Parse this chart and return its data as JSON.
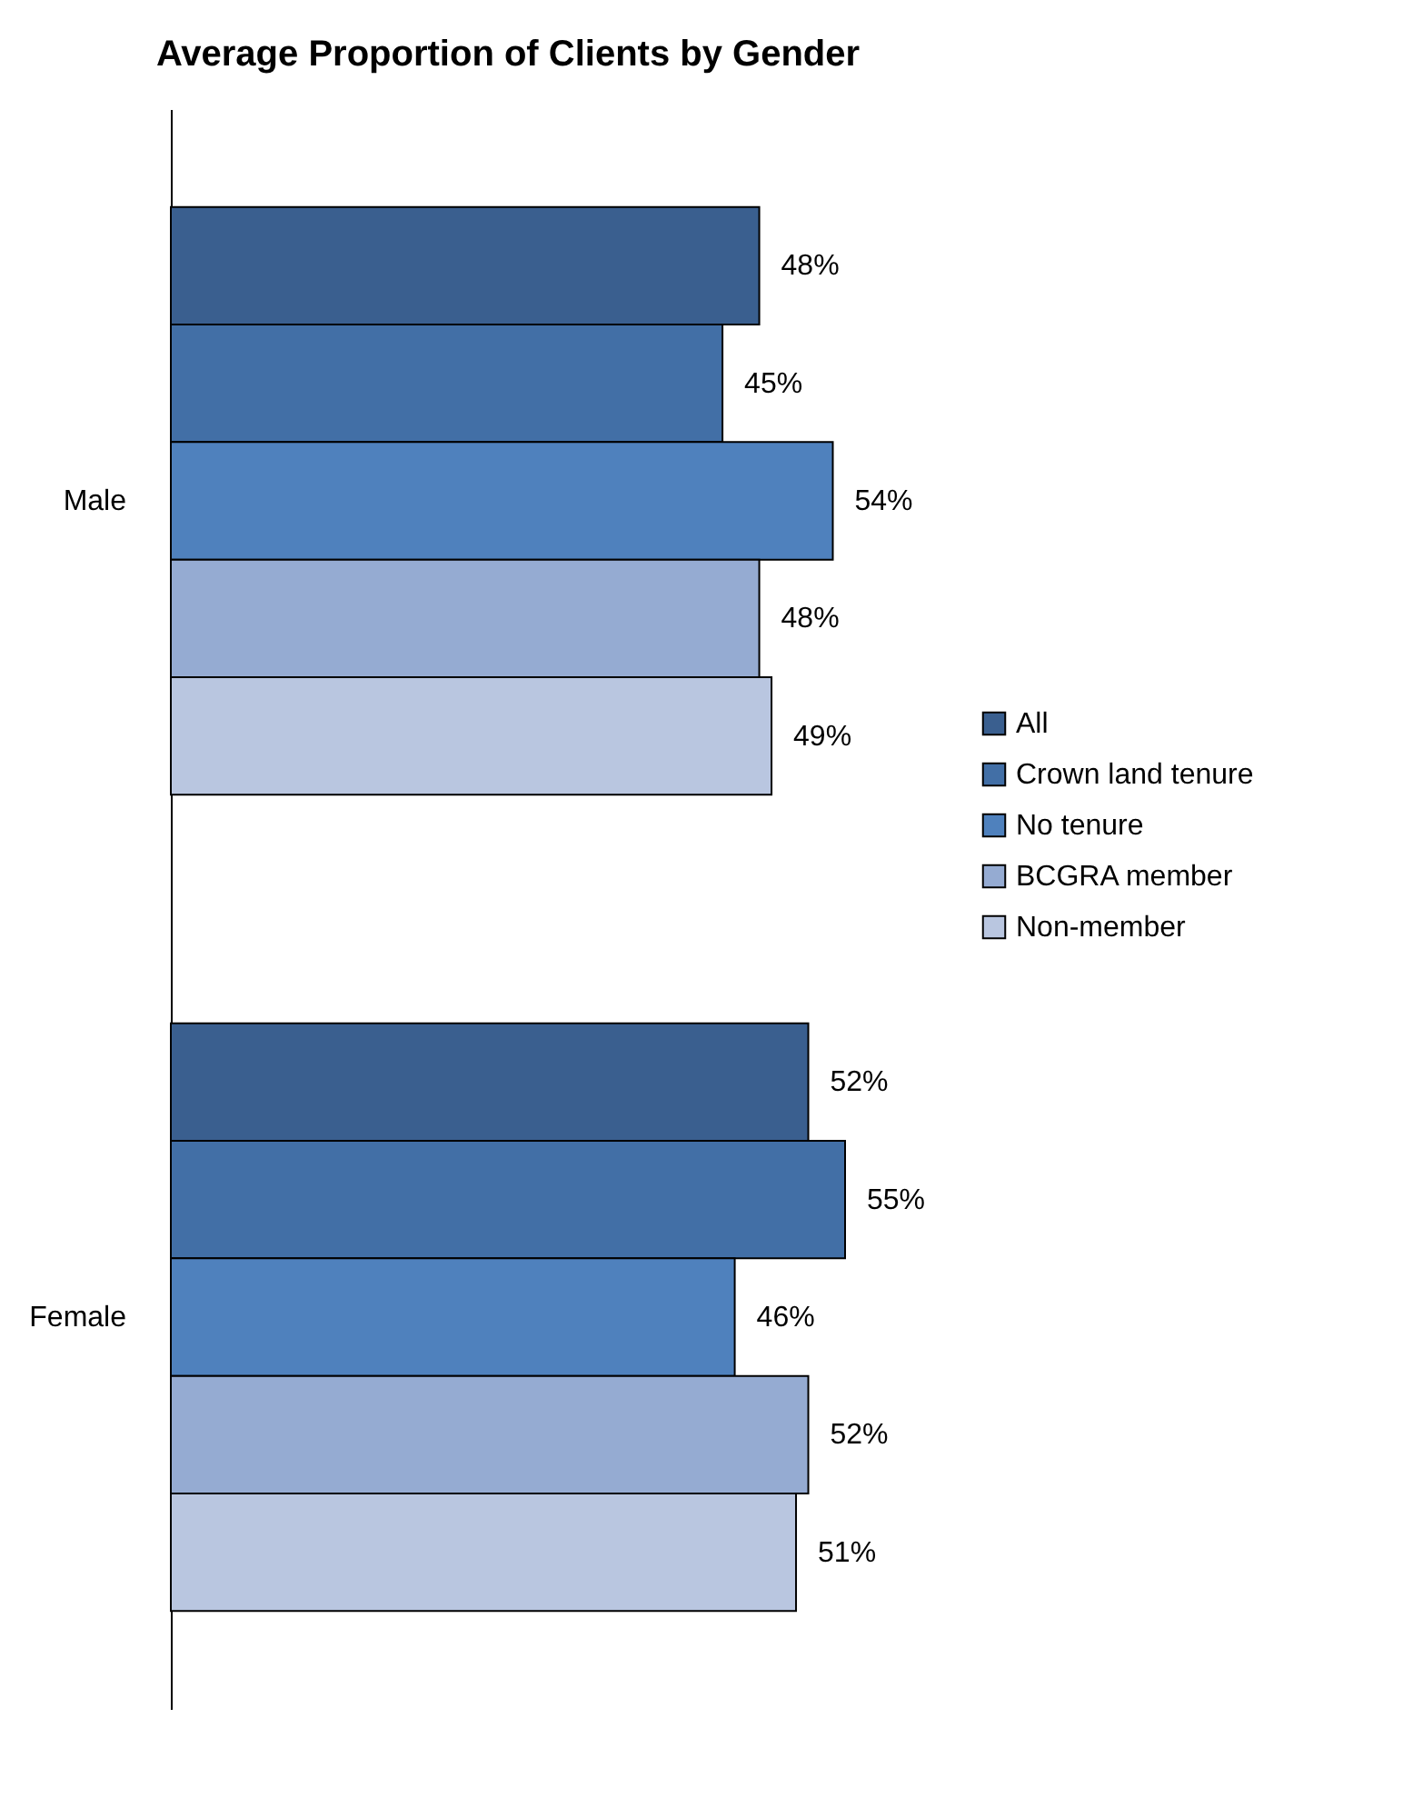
{
  "chart_data": {
    "type": "bar",
    "orientation": "horizontal",
    "title": "Average Proportion of Clients by Gender",
    "categories": [
      "Male",
      "Female"
    ],
    "series": [
      {
        "name": "All",
        "color": "#3a5f8f",
        "values": [
          48,
          52
        ],
        "value_labels": [
          "48%",
          "52%"
        ]
      },
      {
        "name": "Crown land tenure",
        "color": "#426fa6",
        "values": [
          45,
          55
        ],
        "value_labels": [
          "45%",
          "55%"
        ]
      },
      {
        "name": "No tenure",
        "color": "#4f81bd",
        "values": [
          54,
          46
        ],
        "value_labels": [
          "54%",
          "46%"
        ]
      },
      {
        "name": "BCGRA member",
        "color": "#95abd2",
        "values": [
          48,
          52
        ],
        "value_labels": [
          "48%",
          "52%"
        ]
      },
      {
        "name": "Non-member",
        "color": "#b9c6e0",
        "values": [
          49,
          51
        ],
        "value_labels": [
          "49%",
          "51%"
        ]
      }
    ],
    "legend": "right"
  }
}
